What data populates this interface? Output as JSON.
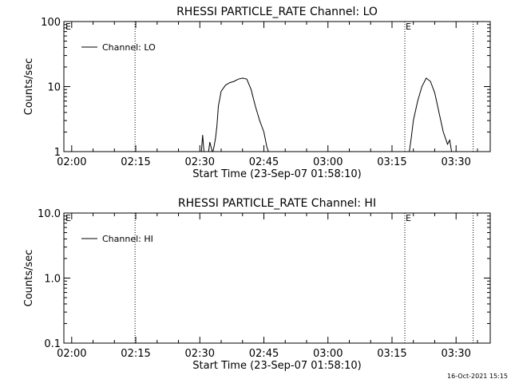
{
  "chart_data": [
    {
      "type": "line",
      "title": "RHESSI PARTICLE_RATE Channel: LO",
      "xlabel": "Start Time (23-Sep-07 01:58:10)",
      "ylabel": "Counts/sec",
      "yscale": "log",
      "ylim": [
        1,
        100
      ],
      "xlim": [
        "01:58:10",
        "03:38:00"
      ],
      "y_ticks": [
        "1",
        "10",
        "100"
      ],
      "x_ticks": [
        "02:00",
        "02:15",
        "02:30",
        "02:45",
        "03:00",
        "03:15",
        "03:30"
      ],
      "legend": "top-left",
      "markers": [
        {
          "time": "02:14:50",
          "label": ""
        },
        {
          "time": "03:18:00",
          "label": "E"
        },
        {
          "time": "03:34:00",
          "label": ""
        }
      ],
      "corner_label": "E",
      "series": [
        {
          "name": "Channel: LO",
          "x": [
            "02:30:20",
            "02:30:40",
            "02:31:00",
            "02:32:00",
            "02:32:20",
            "02:33:00",
            "02:33:20",
            "02:33:40",
            "02:34:00",
            "02:34:20",
            "02:35:00",
            "02:36:00",
            "02:37:00",
            "02:38:00",
            "02:39:00",
            "02:40:00",
            "02:41:00",
            "02:42:00",
            "02:43:00",
            "02:44:00",
            "02:45:00",
            "02:45:40",
            "02:46:10"
          ],
          "y": [
            0.95,
            1.8,
            0.95,
            0.95,
            1.4,
            0.95,
            1.2,
            1.6,
            2.5,
            5.0,
            8.5,
            10.5,
            11.5,
            12,
            13,
            13.5,
            13,
            9,
            5,
            3,
            2,
            1.2,
            0.95
          ]
        },
        {
          "name": "Channel: LO",
          "x": [
            "03:19:00",
            "03:19:30",
            "03:20:00",
            "03:21:00",
            "03:22:00",
            "03:23:00",
            "03:24:00",
            "03:25:00",
            "03:26:00",
            "03:27:00",
            "03:28:00",
            "03:28:30",
            "03:29:00"
          ],
          "y": [
            0.95,
            1.6,
            3,
            6,
            10,
            13.5,
            12,
            8,
            4,
            2,
            1.3,
            1.5,
            0.95
          ]
        }
      ]
    },
    {
      "type": "line",
      "title": "RHESSI PARTICLE_RATE Channel: HI",
      "xlabel": "Start Time (23-Sep-07 01:58:10)",
      "ylabel": "Counts/sec",
      "yscale": "log",
      "ylim": [
        0.1,
        10.0
      ],
      "xlim": [
        "01:58:10",
        "03:38:00"
      ],
      "y_ticks": [
        "0.1",
        "1.0",
        "10.0"
      ],
      "x_ticks": [
        "02:00",
        "02:15",
        "02:30",
        "02:45",
        "03:00",
        "03:15",
        "03:30"
      ],
      "legend": "top-left",
      "markers": [
        {
          "time": "02:14:50",
          "label": ""
        },
        {
          "time": "03:18:00",
          "label": "E"
        },
        {
          "time": "03:34:00",
          "label": ""
        }
      ],
      "corner_label": "E",
      "series": [
        {
          "name": "Channel: HI",
          "x": [],
          "y": []
        }
      ]
    }
  ],
  "footer": {
    "timestamp": "16-Oct-2021 15:15"
  }
}
